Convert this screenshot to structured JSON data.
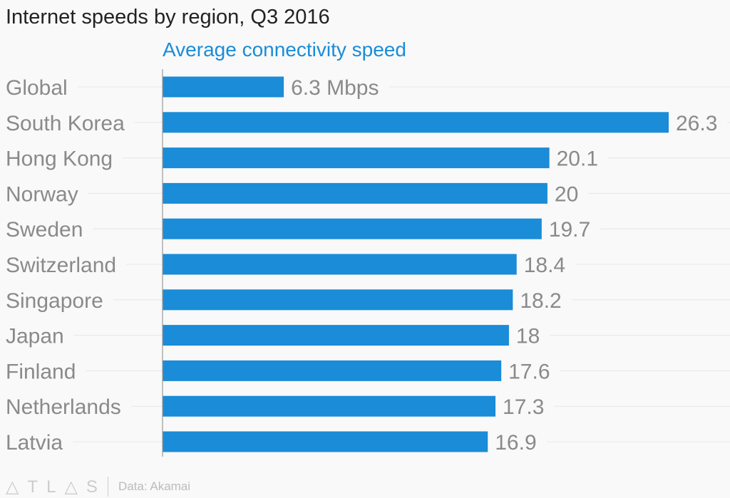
{
  "chart_data": {
    "type": "bar",
    "orientation": "horizontal",
    "title": "Internet speeds by region, Q3 2016",
    "series_label": "Average connectivity speed",
    "categories": [
      "Global",
      "South Korea",
      "Hong Kong",
      "Norway",
      "Sweden",
      "Switzerland",
      "Singapore",
      "Japan",
      "Finland",
      "Netherlands",
      "Latvia"
    ],
    "values": [
      6.3,
      26.3,
      20.1,
      20,
      19.7,
      18.4,
      18.2,
      18,
      17.6,
      17.3,
      16.9
    ],
    "value_labels": [
      "6.3 Mbps",
      "26.3",
      "20.1",
      "20",
      "19.7",
      "18.4",
      "18.2",
      "18",
      "17.6",
      "17.3",
      "16.9"
    ],
    "unit": "Mbps",
    "xlim": [
      0,
      26.3
    ],
    "grid": true,
    "bar_color": "#1a8cd8"
  },
  "footer": {
    "logo": "ATLAS",
    "source": "Data: Akamai"
  }
}
